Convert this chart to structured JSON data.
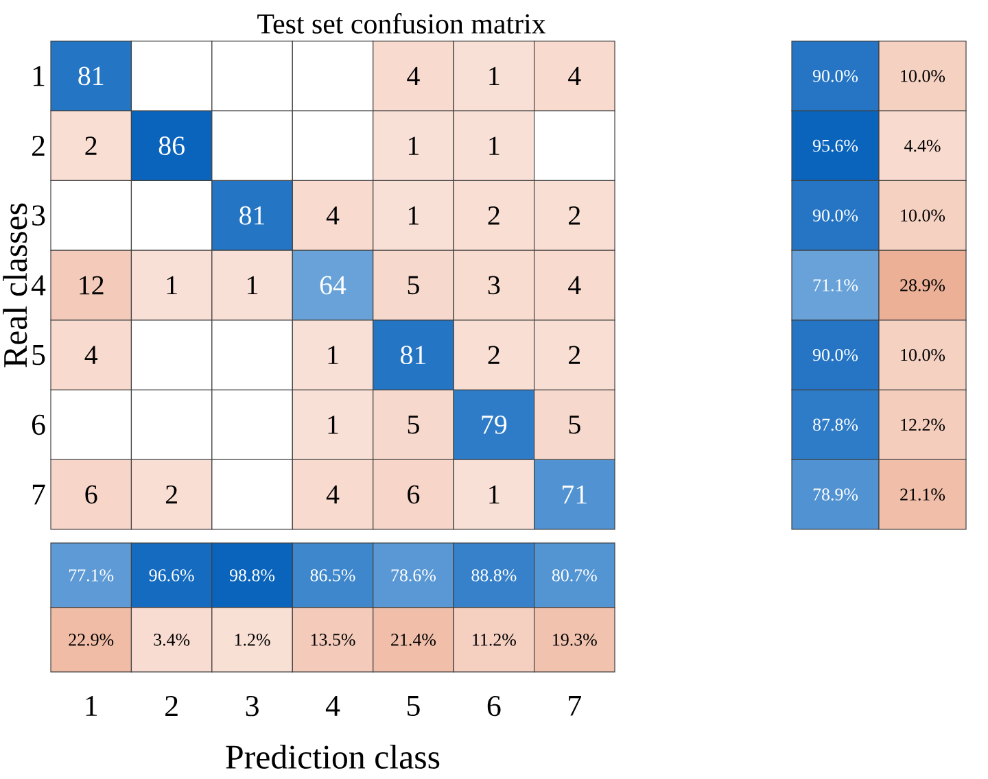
{
  "chart_data": [
    {
      "type": "heatmap",
      "title": "Test set confusion matrix",
      "ylabel": "Real classes",
      "categories": [
        "1",
        "2",
        "3",
        "4",
        "5",
        "6",
        "7"
      ],
      "y_categories": [
        "1",
        "2",
        "3",
        "4",
        "5",
        "6",
        "7"
      ],
      "tick_labels": "y",
      "data_labels": true,
      "cells": [
        [
          81,
          null,
          null,
          null,
          4,
          1,
          4
        ],
        [
          2,
          86,
          null,
          null,
          1,
          1,
          null
        ],
        [
          null,
          null,
          81,
          4,
          1,
          2,
          2
        ],
        [
          12,
          1,
          1,
          64,
          5,
          3,
          4
        ],
        [
          4,
          null,
          null,
          1,
          81,
          2,
          2
        ],
        [
          null,
          null,
          null,
          1,
          5,
          79,
          5
        ],
        [
          6,
          2,
          null,
          4,
          6,
          1,
          71
        ]
      ]
    },
    {
      "type": "heatmap",
      "categories": [
        null,
        null
      ],
      "y_categories": [
        null,
        null,
        null,
        null,
        null,
        null,
        null
      ],
      "tick_labels": false,
      "cells": [
        [
          90.0,
          10.0
        ],
        [
          95.6,
          4.4
        ],
        [
          90.0,
          10.0
        ],
        [
          71.1,
          28.9
        ],
        [
          90.0,
          10.0
        ],
        [
          87.8,
          12.2
        ],
        [
          78.9,
          21.1
        ]
      ],
      "cell_labels": [
        [
          "90.0%",
          "10.0%"
        ],
        [
          "95.6%",
          "4.4%"
        ],
        [
          "90.0%",
          "10.0%"
        ],
        [
          "71.1%",
          "28.9%"
        ],
        [
          "90.0%",
          "10.0%"
        ],
        [
          "87.8%",
          "12.2%"
        ],
        [
          "78.9%",
          "21.1%"
        ]
      ]
    },
    {
      "type": "heatmap",
      "xlabel": "Prediction class",
      "categories": [
        "1",
        "2",
        "3",
        "4",
        "5",
        "6",
        "7"
      ],
      "y_categories": [
        null,
        null
      ],
      "tick_labels": "x",
      "cells": [
        [
          77.1,
          96.6,
          98.8,
          86.5,
          78.6,
          88.8,
          80.7
        ],
        [
          22.9,
          3.4,
          1.2,
          13.5,
          21.4,
          11.2,
          19.3
        ]
      ],
      "cell_labels": [
        [
          "77.1%",
          "96.6%",
          "98.8%",
          "86.5%",
          "78.6%",
          "88.8%",
          "80.7%"
        ],
        [
          "22.9%",
          "3.4%",
          "1.2%",
          "13.5%",
          "21.4%",
          "11.2%",
          "19.3%"
        ]
      ]
    }
  ]
}
